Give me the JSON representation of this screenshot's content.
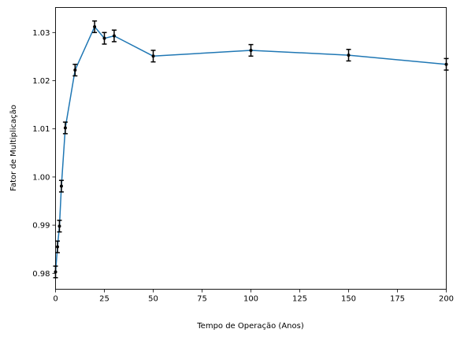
{
  "chart_data": {
    "type": "line",
    "title": "",
    "xlabel": "Tempo de Operação (Anos)",
    "ylabel": "Fator de Multiplicação",
    "xlim": [
      0,
      200
    ],
    "ylim": [
      0.9767,
      1.0352
    ],
    "grid": false,
    "x_ticks": [
      0,
      25,
      50,
      75,
      100,
      125,
      150,
      175,
      200
    ],
    "y_ticks": [
      0.98,
      0.99,
      1.0,
      1.01,
      1.02,
      1.03
    ],
    "y_tick_labels": [
      "0.98",
      "0.99",
      "1.00",
      "1.01",
      "1.02",
      "1.03"
    ],
    "line_color": "#1f77b4",
    "marker_color": "#000000",
    "series": [
      {
        "x": [
          0,
          1,
          2,
          3,
          5,
          10,
          20,
          25,
          30,
          50,
          100,
          150,
          200
        ],
        "y": [
          0.9803,
          0.9855,
          0.9898,
          0.9981,
          1.0102,
          1.0222,
          1.0312,
          1.0288,
          1.0293,
          1.0251,
          1.0263,
          1.0253,
          1.0234
        ],
        "err": [
          0.0012,
          0.0012,
          0.0012,
          0.0012,
          0.0012,
          0.0012,
          0.0012,
          0.0012,
          0.0012,
          0.0012,
          0.0012,
          0.0012,
          0.0012
        ]
      }
    ]
  }
}
